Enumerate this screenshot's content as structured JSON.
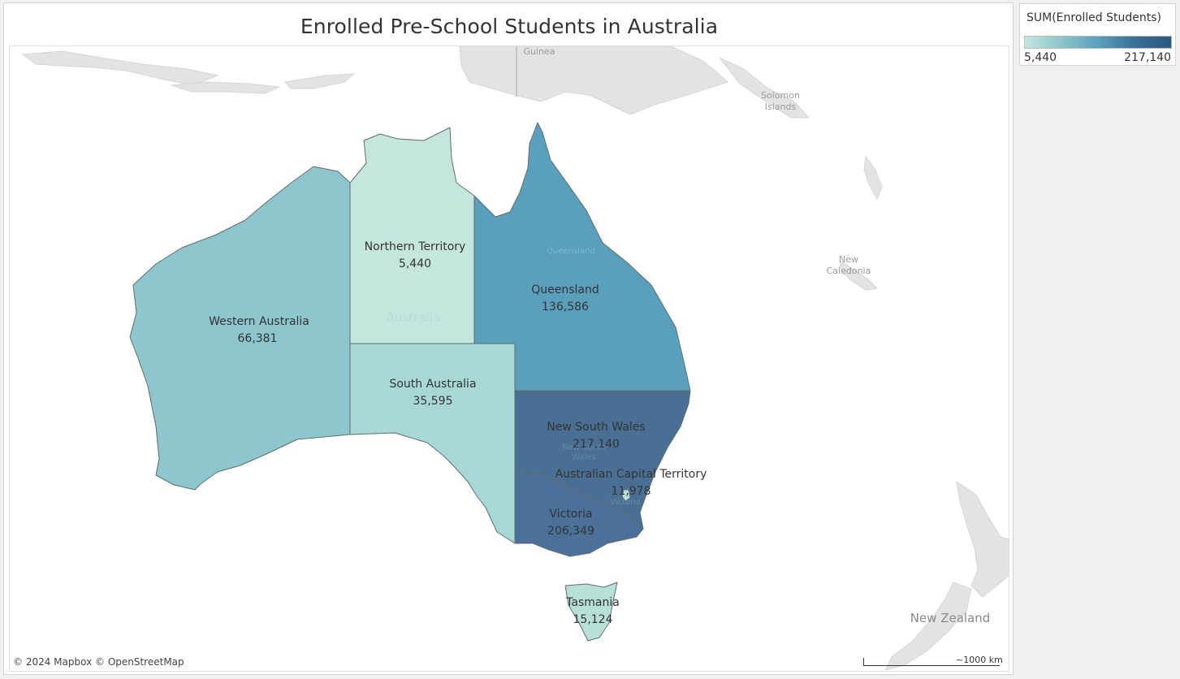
{
  "title": "Enrolled Pre-School Students in Australia",
  "legend": {
    "title": "SUM(Enrolled Students)",
    "min_label": "5,440",
    "max_label": "217,140",
    "color_low": "#c4e6e1",
    "color_high": "#2c5680"
  },
  "regions": [
    {
      "name": "Western Australia",
      "value": "66,381",
      "color": "#8dc6cd"
    },
    {
      "name": "Northern Territory",
      "value": "5,440",
      "color": "#c5e6dc"
    },
    {
      "name": "South Australia",
      "value": "35,595",
      "color": "#a8d8d6"
    },
    {
      "name": "Queensland",
      "value": "136,586",
      "color": "#5aa0bd"
    },
    {
      "name": "New South Wales",
      "value": "217,140",
      "color": "#4a6f94"
    },
    {
      "name": "Australian Capital Territory",
      "value": "11,978",
      "color": "#b8e0da"
    },
    {
      "name": "Victoria",
      "value": "206,349",
      "color": "#4b7099"
    },
    {
      "name": "Tasmania",
      "value": "15,124",
      "color": "#b7e0d9"
    }
  ],
  "basemap_labels": {
    "guinea": "Guinea",
    "solomon_line1": "Solomon",
    "solomon_line2": "Islands",
    "new_caledonia_line1": "New",
    "new_caledonia_line2": "Caledonia",
    "new_zealand": "New Zealand",
    "australia": "Australia",
    "queensland_faint": "Queensland",
    "nsw_faint_line1": "New South",
    "nsw_faint_line2": "Wales",
    "victoria_faint": "Victoria"
  },
  "attribution": "© 2024 Mapbox © OpenStreetMap",
  "scale": "~1000 km"
}
